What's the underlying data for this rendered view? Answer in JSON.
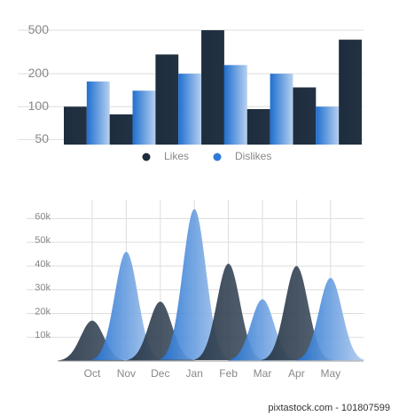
{
  "chart_data": [
    {
      "type": "bar",
      "log_scale": true,
      "categories": [
        null,
        null,
        null,
        null,
        null,
        null,
        null
      ],
      "series": [
        {
          "name": "Likes",
          "color": "#1e2d3d",
          "values": [
            100,
            85,
            300,
            500,
            95,
            150,
            410
          ]
        },
        {
          "name": "Dislikes",
          "color": "#2f7bd9",
          "values": [
            170,
            140,
            200,
            240,
            200,
            100,
            null
          ]
        }
      ],
      "ylim": [
        45,
        650
      ],
      "yticks": [
        50,
        100,
        200,
        500
      ],
      "grid": true,
      "legend": "bottom"
    },
    {
      "type": "area",
      "categories": [
        "Oct",
        "Nov",
        "Dec",
        "Jan",
        "Feb",
        "Mar",
        "Apr",
        "May"
      ],
      "values": [
        17000,
        46000,
        25000,
        64000,
        41000,
        26000,
        40000,
        35000
      ],
      "colors": [
        "#2c3a4a",
        "#2f7bd9",
        "#2c3a4a",
        "#2f7bd9",
        "#2c3a4a",
        "#2f7bd9",
        "#2c3a4a",
        "#2f7bd9"
      ],
      "ylim": [
        0,
        68000
      ],
      "yticks": [
        {
          "value": 10000,
          "label": "10k"
        },
        {
          "value": 20000,
          "label": "20k"
        },
        {
          "value": 30000,
          "label": "30k"
        },
        {
          "value": 40000,
          "label": "40k"
        },
        {
          "value": 50000,
          "label": "50k"
        },
        {
          "value": 60000,
          "label": "60k"
        }
      ],
      "grid": true
    },
    {
      "footer": "pixtastock.com - 101807599"
    }
  ]
}
